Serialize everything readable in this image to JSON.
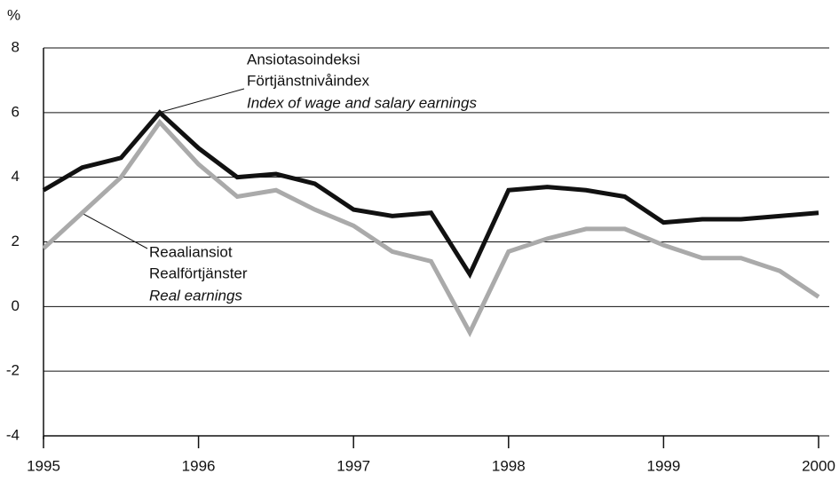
{
  "chart_data": {
    "type": "line",
    "y_label": "%",
    "x": [
      1995,
      1995.25,
      1995.5,
      1995.75,
      1996,
      1996.25,
      1996.5,
      1996.75,
      1997,
      1997.25,
      1997.5,
      1997.75,
      1998,
      1998.25,
      1998.5,
      1998.75,
      1999,
      1999.25,
      1999.5,
      1999.75,
      2000
    ],
    "series": [
      {
        "name": "Ansiotasoindeksi",
        "color": "#111111",
        "values": [
          3.6,
          4.3,
          4.6,
          6.0,
          4.9,
          4.0,
          4.1,
          3.8,
          3.0,
          2.8,
          2.9,
          1.0,
          3.6,
          3.7,
          3.6,
          3.4,
          2.6,
          2.7,
          2.7,
          2.8,
          2.9
        ]
      },
      {
        "name": "Reaaliansiot",
        "color": "#aaaaaa",
        "values": [
          1.8,
          2.9,
          4.0,
          5.7,
          4.4,
          3.4,
          3.6,
          3.0,
          2.5,
          1.7,
          1.4,
          -0.8,
          1.7,
          2.1,
          2.4,
          2.4,
          1.9,
          1.5,
          1.5,
          1.1,
          0.3
        ]
      }
    ],
    "annotations": [
      {
        "lines": [
          "Ansiotasoindeksi",
          "Förtjänstnivåindex",
          "Index of wage and salary earnings"
        ]
      },
      {
        "lines": [
          "Reaaliansiot",
          "Realförtjänster",
          "Real earnings"
        ]
      }
    ],
    "xlim": [
      1995,
      2000
    ],
    "xticks": [
      1995,
      1996,
      1997,
      1998,
      1999,
      2000
    ],
    "ylim": [
      -4,
      8
    ],
    "yticks": [
      -4,
      -2,
      0,
      2,
      4,
      6,
      8
    ],
    "grid": true
  }
}
